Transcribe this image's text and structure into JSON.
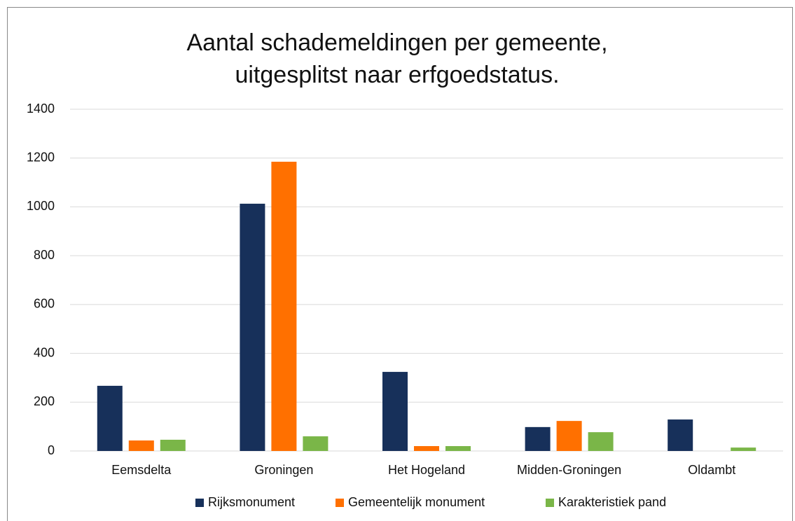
{
  "chart_data": {
    "type": "bar",
    "title": "Aantal schademeldingen per gemeente, uitgesplitst naar erfgoedstatus.",
    "categories": [
      "Eemsdelta",
      "Groningen",
      "Het Hogeland",
      "Midden-Groningen",
      "Oldambt"
    ],
    "series": [
      {
        "name": "Rijksmonument",
        "color": "#17305a",
        "values": [
          267,
          1013,
          324,
          98,
          129
        ]
      },
      {
        "name": "Gemeentelijk monument",
        "color": "#ff7000",
        "values": [
          43,
          1185,
          20,
          123,
          0
        ]
      },
      {
        "name": "Karakteristiek pand",
        "color": "#7ab648",
        "values": [
          46,
          60,
          20,
          77,
          14
        ]
      }
    ],
    "ylim": [
      0,
      1400
    ],
    "yticks": [
      0,
      200,
      400,
      600,
      800,
      1000,
      1200,
      1400
    ],
    "grid": true,
    "legend": "bottom"
  }
}
